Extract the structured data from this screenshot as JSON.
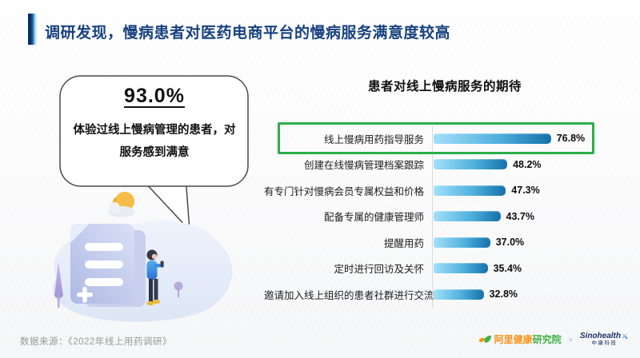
{
  "slide": {
    "title": "调研发现，慢病患者对医药电商平台的慢病服务满意度较高",
    "callout": {
      "headline": "93.0%",
      "line1": "体验过线上慢病管理的患者，对",
      "line2": "服务感到满意"
    },
    "source": "数据来源：《2022年线上用药调研》",
    "logos": {
      "ali_part1": "阿里健康",
      "ali_part2": "研究院",
      "separator": "×",
      "sino_name": "Sinohealth",
      "sino_sub": "中康科技"
    }
  },
  "chart_data": {
    "type": "bar",
    "orientation": "horizontal",
    "title": "患者对线上慢病服务的期待",
    "categories": [
      "线上慢病用药指导服务",
      "创建在线慢病管理档案跟踪",
      "有专门针对慢病会员专属权益和价格",
      "配备专属的健康管理师",
      "提醒用药",
      "定时进行回访及关怀",
      "邀请加入线上组织的患者社群进行交流"
    ],
    "values": [
      76.8,
      48.2,
      47.3,
      43.7,
      37.0,
      35.4,
      32.8
    ],
    "unit": "%",
    "xlim": [
      0,
      100
    ],
    "grid": false,
    "legend": false,
    "highlight_index": 0,
    "bar_gradient": [
      "#a2e0fa",
      "#1470ab"
    ],
    "highlight_color": "#2bae4a"
  },
  "colors": {
    "title_text": "#17417f",
    "accent_bar_dark": "#0d2f63",
    "accent_bar_mid": "#1f66ad",
    "accent_bar_light": "#7fc4e9",
    "source_text": "#9a9a9a",
    "ali_orange": "#f7941d",
    "ali_green": "#43b049",
    "sino_navy": "#1b2f66"
  }
}
